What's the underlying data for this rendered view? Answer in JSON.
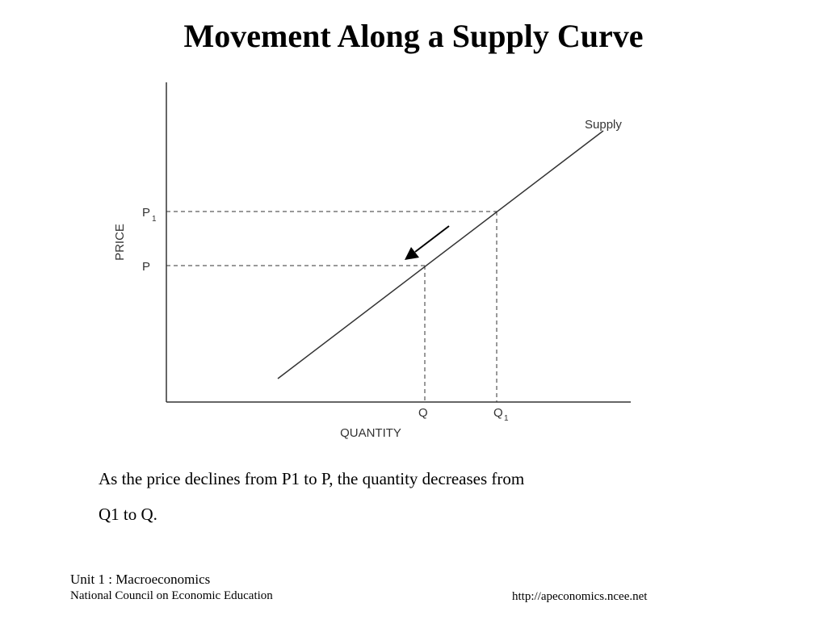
{
  "slide": {
    "title": "Movement Along a Supply Curve",
    "caption_line1": "As the price declines from P1 to P, the quantity decreases from",
    "caption_line2": "Q1 to Q."
  },
  "diagram": {
    "y_axis_label": "PRICE",
    "x_axis_label": "QUANTITY",
    "curve_label": "Supply",
    "price_labels": {
      "p1_main": "P",
      "p1_sub": "1",
      "p": "P"
    },
    "quantity_labels": {
      "q": "Q",
      "q1_main": "Q",
      "q1_sub": "1"
    },
    "arrow_direction": "down-left along supply curve"
  },
  "footer": {
    "unit": "Unit 1 : Macroeconomics",
    "organization": "National Council on Economic Education",
    "url": "http://apeconomics.ncee.net"
  }
}
